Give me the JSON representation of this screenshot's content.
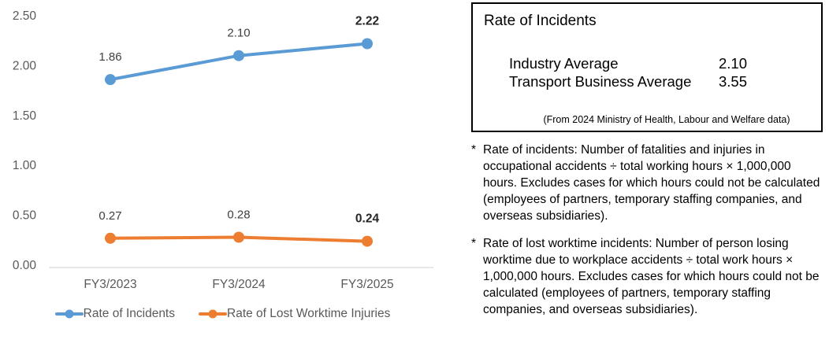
{
  "chart_data": {
    "type": "line",
    "title": "",
    "xlabel": "",
    "ylabel": "",
    "categories": [
      "FY3/2023",
      "FY3/2024",
      "FY3/2025"
    ],
    "series": [
      {
        "name": "Rate of Incidents",
        "color": "#5B9BD5",
        "values": [
          1.86,
          2.1,
          2.22
        ],
        "labels": [
          "1.86",
          "2.10",
          "2.22"
        ],
        "bold_labels": [
          false,
          false,
          true
        ]
      },
      {
        "name": "Rate of Lost Worktime Injuries",
        "color": "#ED7D31",
        "values": [
          0.27,
          0.28,
          0.24
        ],
        "labels": [
          "0.27",
          "0.28",
          "0.24"
        ],
        "bold_labels": [
          false,
          false,
          true
        ]
      }
    ],
    "ylim": [
      0,
      2.5
    ],
    "yticks": [
      {
        "value": 0,
        "label": "0.00"
      },
      {
        "value": 0.5,
        "label": "0.50"
      },
      {
        "value": 1,
        "label": "1.00"
      },
      {
        "value": 1.5,
        "label": "1.50"
      },
      {
        "value": 2,
        "label": "2.00"
      },
      {
        "value": 2.5,
        "label": "2.50"
      }
    ],
    "grid": false,
    "legend_position": "bottom"
  },
  "colors": {
    "series_blue": "#5B9BD5",
    "series_orange": "#ED7D31",
    "axis_text": "#595959",
    "data_label": "#404040",
    "axis_line": "#D9D9D9",
    "box_border": "#000000"
  },
  "info_box": {
    "title": "Rate of Incidents",
    "rows": [
      {
        "label": "Industry Average",
        "value": "2.10"
      },
      {
        "label": "Transport Business Average",
        "value": "3.55"
      }
    ],
    "source": "(From 2024 Ministry of Health, Labour and Welfare data)"
  },
  "notes": [
    {
      "marker": "*",
      "text": "Rate of incidents: Number of fatalities and injuries in occupational accidents ÷ total working hours × 1,000,000 hours. Excludes cases for which hours could not be calculated (employees of partners, temporary staffing companies, and overseas subsidiaries)."
    },
    {
      "marker": "*",
      "text": "Rate of lost worktime incidents: Number of person losing worktime due to workplace accidents ÷ total work hours × 1,000,000 hours. Excludes cases for which hours could not be calculated (employees of partners, temporary staffing companies, and overseas subsidiaries)."
    }
  ]
}
